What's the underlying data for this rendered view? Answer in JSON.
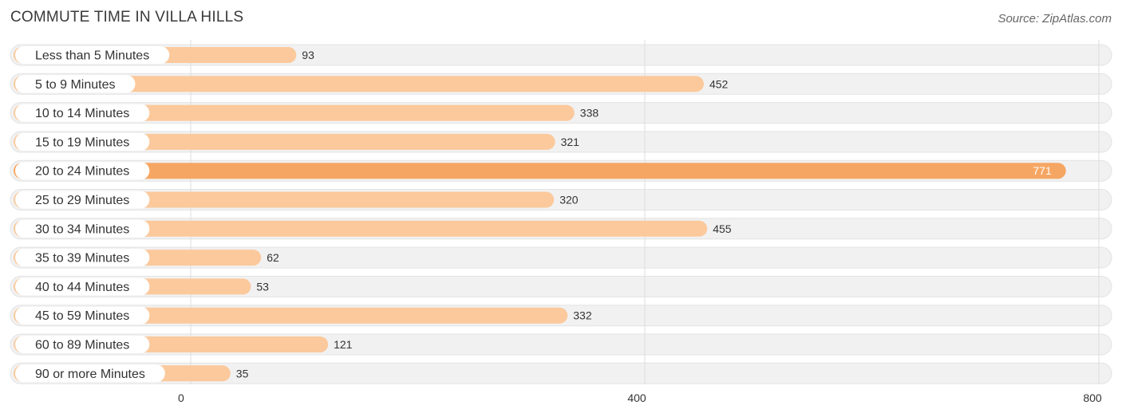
{
  "header": {
    "title": "COMMUTE TIME IN VILLA HILLS",
    "source": "Source: ZipAtlas.com"
  },
  "colors": {
    "bar_light": "#fbc99c",
    "bar_max": "#f6a663",
    "track": "#f1f1f1",
    "track_border": "#e3e3e3",
    "grid": "#dddddd"
  },
  "chart_data": {
    "type": "bar",
    "orientation": "horizontal",
    "title": "COMMUTE TIME IN VILLA HILLS",
    "categories": [
      "Less than 5 Minutes",
      "5 to 9 Minutes",
      "10 to 14 Minutes",
      "15 to 19 Minutes",
      "20 to 24 Minutes",
      "25 to 29 Minutes",
      "30 to 34 Minutes",
      "35 to 39 Minutes",
      "40 to 44 Minutes",
      "45 to 59 Minutes",
      "60 to 89 Minutes",
      "90 or more Minutes"
    ],
    "values": [
      93,
      452,
      338,
      321,
      771,
      320,
      455,
      62,
      53,
      332,
      121,
      35
    ],
    "xlim": [
      0,
      800
    ],
    "xticks": [
      0,
      400,
      800
    ],
    "xlabel": "",
    "ylabel": "",
    "grid": true
  }
}
